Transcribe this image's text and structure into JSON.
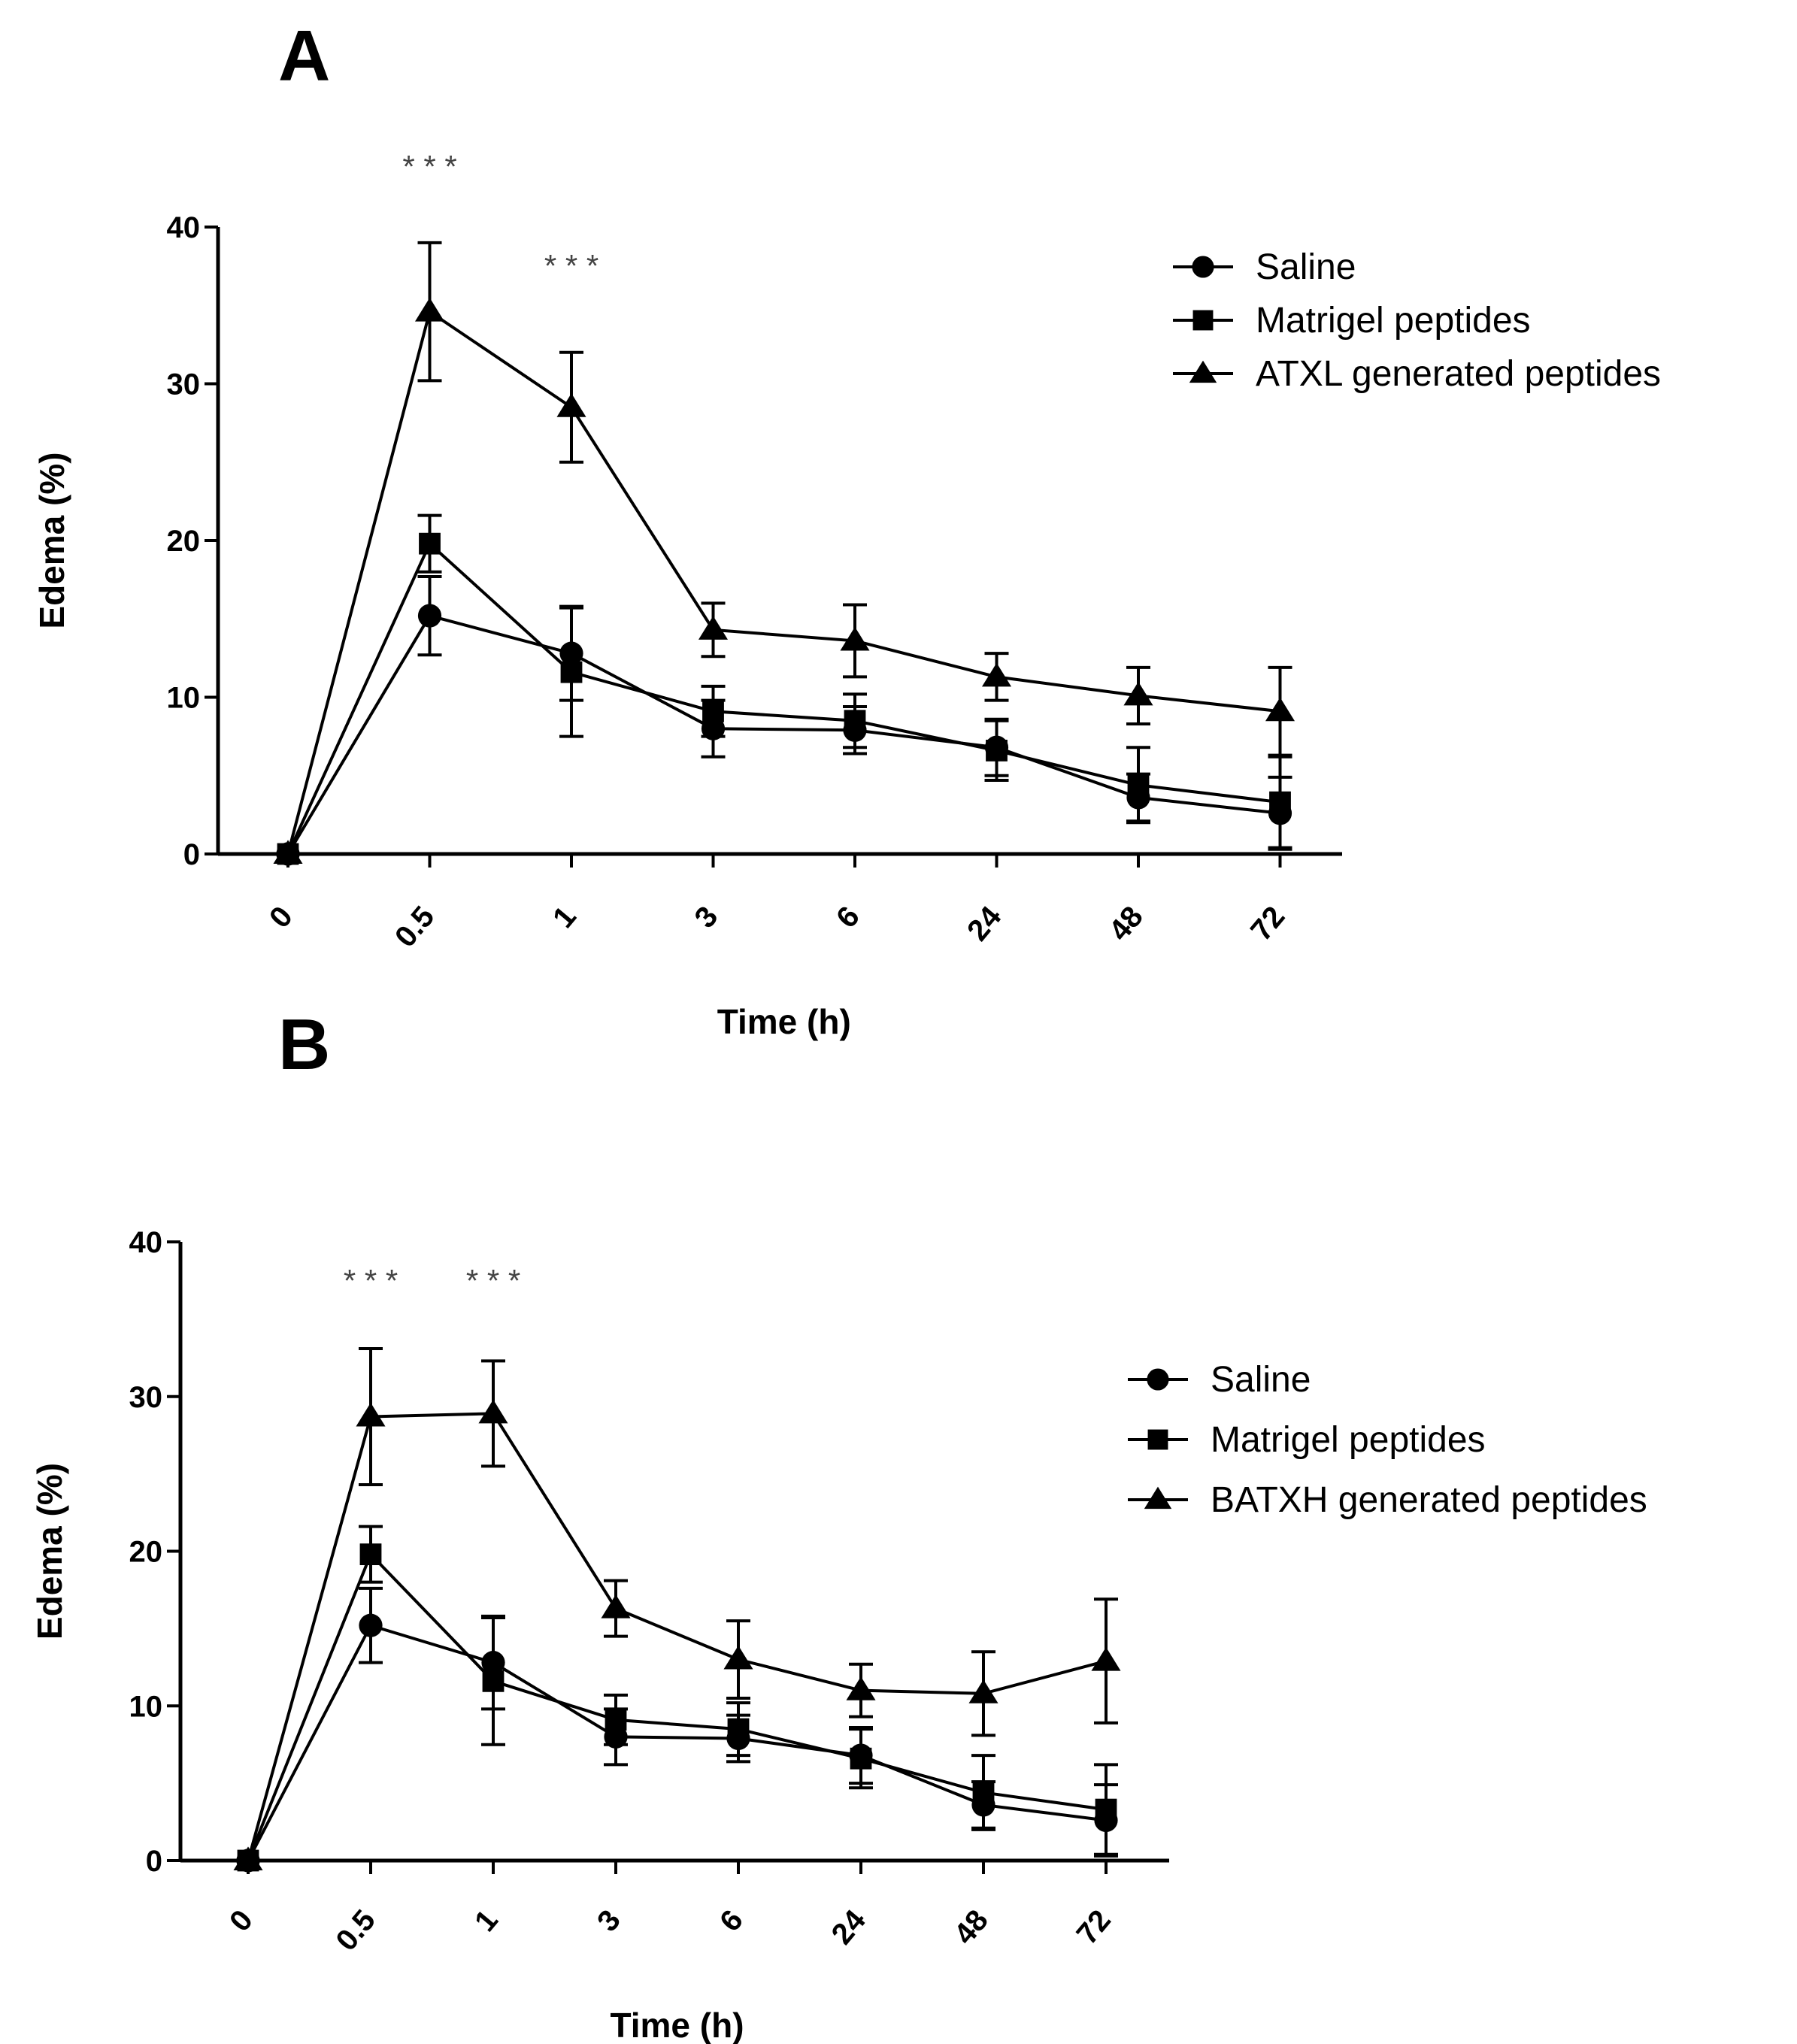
{
  "chart_data": [
    {
      "panel_label": "A",
      "type": "line",
      "title": "",
      "xlabel": "Time (h)",
      "ylabel": "Edema (%)",
      "categories": [
        "0",
        "0.5",
        "1",
        "3",
        "6",
        "24",
        "48",
        "72"
      ],
      "ylim": [
        0,
        40
      ],
      "yticks": [
        "0",
        "10",
        "20",
        "30",
        "40"
      ],
      "legend_position": "top-right",
      "series": [
        {
          "name": "Saline",
          "marker": "circle",
          "values": [
            0,
            15.2,
            12.8,
            8.0,
            7.9,
            6.8,
            3.6,
            2.6
          ],
          "errors": [
            0,
            2.5,
            3.0,
            1.8,
            1.5,
            1.8,
            1.5,
            2.3
          ]
        },
        {
          "name": "Matrigel peptides",
          "marker": "square",
          "values": [
            0,
            19.8,
            11.6,
            9.1,
            8.5,
            6.6,
            4.4,
            3.3
          ],
          "errors": [
            0,
            1.8,
            4.1,
            1.6,
            1.7,
            1.9,
            2.4,
            2.9
          ]
        },
        {
          "name": "ATXL generated peptides",
          "marker": "triangle",
          "values": [
            0,
            34.6,
            28.5,
            14.3,
            13.6,
            11.3,
            10.1,
            9.1
          ],
          "errors": [
            0,
            4.4,
            3.5,
            1.7,
            2.3,
            1.5,
            1.8,
            2.8
          ]
        }
      ],
      "annotations": [
        {
          "text": "* * *",
          "category": "0.5"
        },
        {
          "text": "* * *",
          "category": "1"
        }
      ]
    },
    {
      "panel_label": "B",
      "type": "line",
      "title": "",
      "xlabel": "Time (h)",
      "ylabel": "Edema (%)",
      "categories": [
        "0",
        "0.5",
        "1",
        "3",
        "6",
        "24",
        "48",
        "72"
      ],
      "ylim": [
        0,
        40
      ],
      "yticks": [
        "0",
        "10",
        "20",
        "30",
        "40"
      ],
      "legend_position": "right",
      "series": [
        {
          "name": "Saline",
          "marker": "circle",
          "values": [
            0,
            15.2,
            12.8,
            8.0,
            7.9,
            6.8,
            3.6,
            2.6
          ],
          "errors": [
            0,
            2.4,
            3.0,
            1.8,
            1.5,
            1.8,
            1.5,
            2.3
          ]
        },
        {
          "name": "Matrigel peptides",
          "marker": "square",
          "values": [
            0,
            19.8,
            11.6,
            9.1,
            8.5,
            6.6,
            4.4,
            3.3
          ],
          "errors": [
            0,
            1.8,
            4.1,
            1.6,
            1.7,
            1.9,
            2.4,
            2.9
          ]
        },
        {
          "name": "BATXH generated peptides",
          "marker": "triangle",
          "values": [
            0,
            28.7,
            28.9,
            16.3,
            13.0,
            11.0,
            10.8,
            12.9
          ],
          "errors": [
            0,
            4.4,
            3.4,
            1.8,
            2.5,
            1.7,
            2.7,
            4.0
          ]
        }
      ],
      "annotations": [
        {
          "text": "* * *",
          "category": "0.5"
        },
        {
          "text": "* * *",
          "category": "1"
        }
      ]
    }
  ]
}
